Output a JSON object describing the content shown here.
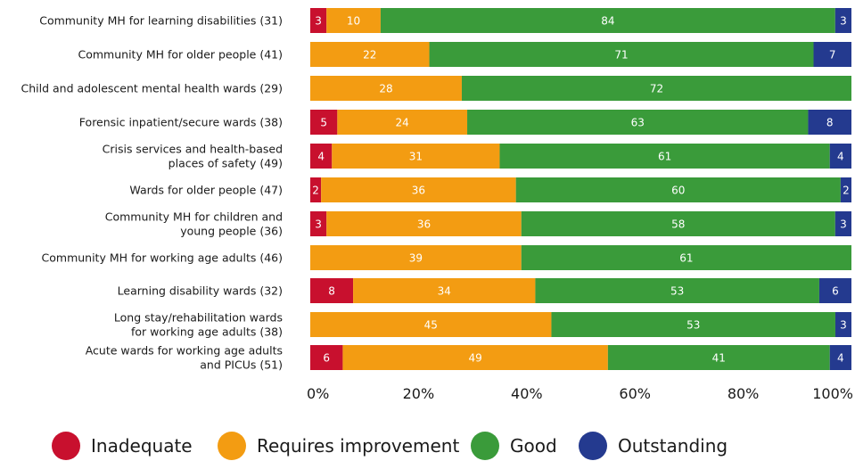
{
  "chart_data": {
    "type": "bar",
    "orientation": "horizontal",
    "stacked": true,
    "title": "",
    "xlabel": "",
    "ylabel": "",
    "xlim": [
      0,
      100
    ],
    "x_ticks": [
      "0%",
      "20%",
      "40%",
      "60%",
      "80%",
      "100%"
    ],
    "grid": false,
    "legend_position": "bottom",
    "categories": [
      [
        "Community MH for learning disabilities (31)"
      ],
      [
        "Community MH for older people (41)"
      ],
      [
        "Child and adolescent mental health wards (29)"
      ],
      [
        "Forensic inpatient/secure wards (38)"
      ],
      [
        "Crisis services and health-based",
        "places of safety (49)"
      ],
      [
        "Wards for older people (47)"
      ],
      [
        "Community MH for children and",
        "young people (36)"
      ],
      [
        "Community MH for working age adults (46)"
      ],
      [
        "Learning disability wards (32)"
      ],
      [
        "Long stay/rehabilitation wards",
        "for working age adults (38)"
      ],
      [
        "Acute wards for working age adults",
        "and PICUs (51)"
      ]
    ],
    "series": [
      {
        "name": "Inadequate",
        "color": "#c8102e",
        "values": [
          3,
          0,
          0,
          5,
          4,
          2,
          3,
          0,
          8,
          0,
          6
        ]
      },
      {
        "name": "Requires improvement",
        "color": "#f39c12",
        "values": [
          10,
          22,
          28,
          24,
          31,
          36,
          36,
          39,
          34,
          45,
          49
        ]
      },
      {
        "name": "Good",
        "color": "#3a9b3a",
        "values": [
          84,
          71,
          72,
          63,
          61,
          60,
          58,
          61,
          53,
          53,
          41
        ]
      },
      {
        "name": "Outstanding",
        "color": "#243a8f",
        "values": [
          3,
          7,
          0,
          8,
          4,
          2,
          3,
          0,
          6,
          3,
          4
        ]
      }
    ]
  }
}
